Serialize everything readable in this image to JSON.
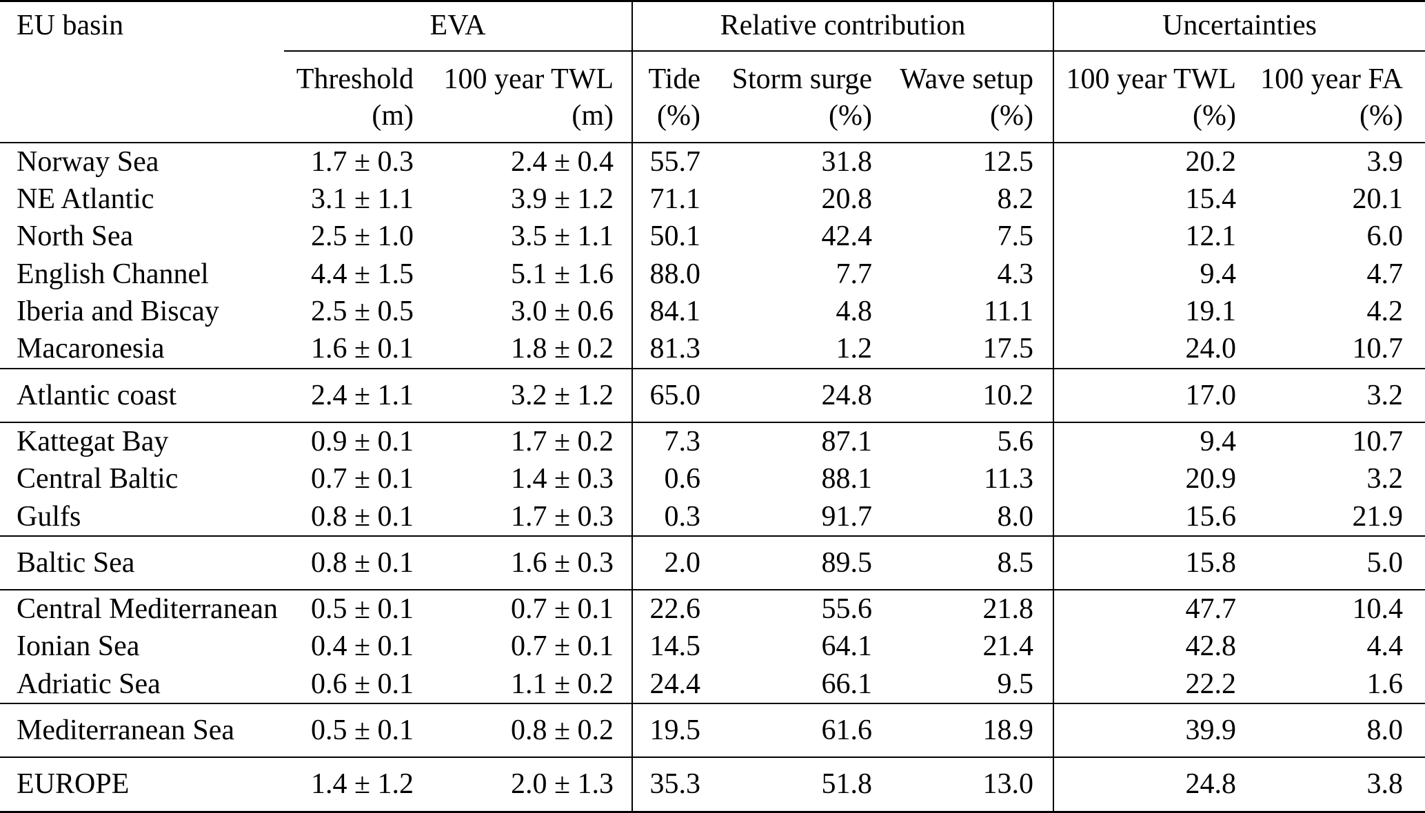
{
  "table": {
    "corner_header": "EU basin",
    "col_groups": [
      {
        "label": "EVA",
        "span": 2
      },
      {
        "label": "Relative contribution",
        "span": 3
      },
      {
        "label": "Uncertainties",
        "span": 2
      }
    ],
    "columns": [
      {
        "name": "Threshold",
        "unit": "(m)"
      },
      {
        "name": "100 year TWL",
        "unit": "(m)"
      },
      {
        "name": "Tide",
        "unit": "(%)"
      },
      {
        "name": "Storm surge",
        "unit": "(%)"
      },
      {
        "name": "Wave setup",
        "unit": "(%)"
      },
      {
        "name": "100 year TWL",
        "unit": "(%)"
      },
      {
        "name": "100 year FA",
        "unit": "(%)"
      }
    ],
    "groups": [
      {
        "rows": [
          [
            "Norway Sea",
            "1.7 ± 0.3",
            "2.4 ± 0.4",
            "55.7",
            "31.8",
            "12.5",
            "20.2",
            "3.9"
          ],
          [
            "NE Atlantic",
            "3.1 ± 1.1",
            "3.9 ± 1.2",
            "71.1",
            "20.8",
            "8.2",
            "15.4",
            "20.1"
          ],
          [
            "North Sea",
            "2.5 ± 1.0",
            "3.5 ± 1.1",
            "50.1",
            "42.4",
            "7.5",
            "12.1",
            "6.0"
          ],
          [
            "English Channel",
            "4.4 ± 1.5",
            "5.1 ± 1.6",
            "88.0",
            "7.7",
            "4.3",
            "9.4",
            "4.7"
          ],
          [
            "Iberia and Biscay",
            "2.5 ± 0.5",
            "3.0 ± 0.6",
            "84.1",
            "4.8",
            "11.1",
            "19.1",
            "4.2"
          ],
          [
            "Macaronesia",
            "1.6 ± 0.1",
            "1.8 ± 0.2",
            "81.3",
            "1.2",
            "17.5",
            "24.0",
            "10.7"
          ]
        ]
      },
      {
        "rows": [
          [
            "Atlantic coast",
            "2.4 ± 1.1",
            "3.2 ± 1.2",
            "65.0",
            "24.8",
            "10.2",
            "17.0",
            "3.2"
          ]
        ]
      },
      {
        "rows": [
          [
            "Kattegat Bay",
            "0.9 ± 0.1",
            "1.7 ± 0.2",
            "7.3",
            "87.1",
            "5.6",
            "9.4",
            "10.7"
          ],
          [
            "Central Baltic",
            "0.7 ± 0.1",
            "1.4 ± 0.3",
            "0.6",
            "88.1",
            "11.3",
            "20.9",
            "3.2"
          ],
          [
            "Gulfs",
            "0.8 ± 0.1",
            "1.7 ± 0.3",
            "0.3",
            "91.7",
            "8.0",
            "15.6",
            "21.9"
          ]
        ]
      },
      {
        "rows": [
          [
            "Baltic Sea",
            "0.8 ± 0.1",
            "1.6 ± 0.3",
            "2.0",
            "89.5",
            "8.5",
            "15.8",
            "5.0"
          ]
        ]
      },
      {
        "rows": [
          [
            "Central Mediterranean",
            "0.5 ± 0.1",
            "0.7 ± 0.1",
            "22.6",
            "55.6",
            "21.8",
            "47.7",
            "10.4"
          ],
          [
            "Ionian Sea",
            "0.4 ± 0.1",
            "0.7 ± 0.1",
            "14.5",
            "64.1",
            "21.4",
            "42.8",
            "4.4"
          ],
          [
            "Adriatic Sea",
            "0.6 ± 0.1",
            "1.1 ± 0.2",
            "24.4",
            "66.1",
            "9.5",
            "22.2",
            "1.6"
          ]
        ]
      },
      {
        "rows": [
          [
            "Mediterranean Sea",
            "0.5 ± 0.1",
            "0.8 ± 0.2",
            "19.5",
            "61.6",
            "18.9",
            "39.9",
            "8.0"
          ]
        ]
      },
      {
        "rows": [
          [
            "EUROPE",
            "1.4 ± 1.2",
            "2.0 ± 1.3",
            "35.3",
            "51.8",
            "13.0",
            "24.8",
            "3.8"
          ]
        ]
      }
    ]
  }
}
